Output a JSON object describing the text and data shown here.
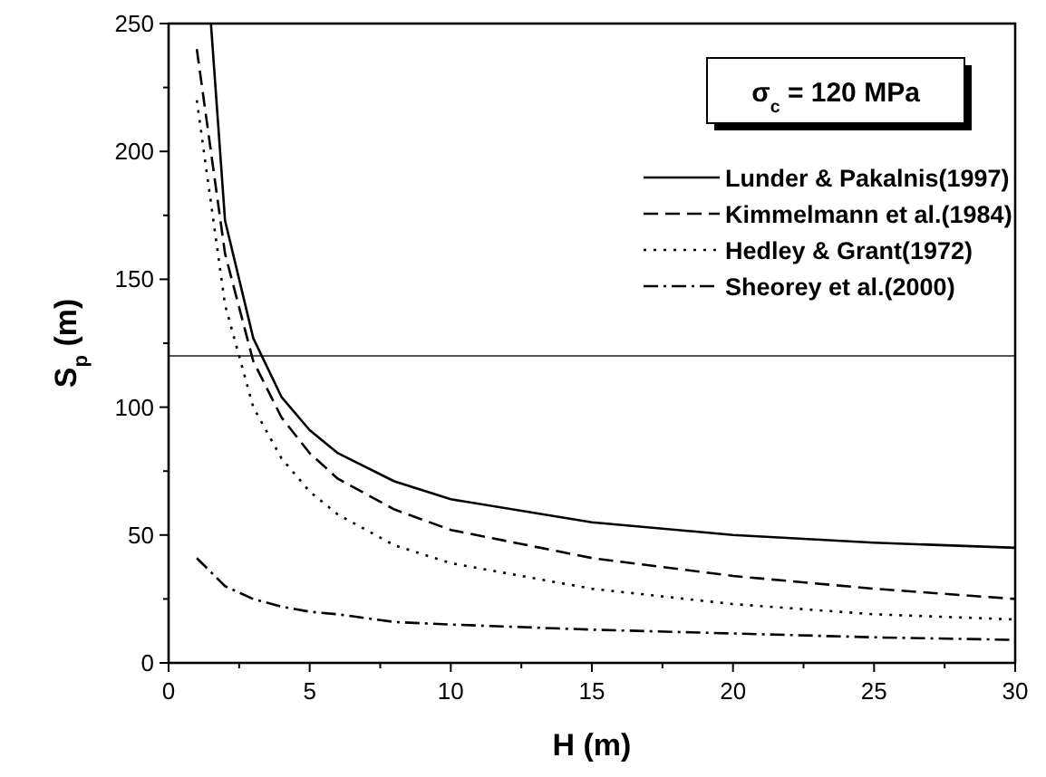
{
  "chart_data": {
    "type": "line",
    "xlabel": "H (m)",
    "ylabel": "S$_{p}$ (m)",
    "xlim": [
      0,
      30
    ],
    "ylim": [
      0,
      250
    ],
    "xticks": [
      0,
      {
        "value": 2.5,
        "label": null
      },
      5,
      {
        "value": 7.5,
        "label": null
      },
      10,
      {
        "value": 12.5,
        "label": null
      },
      15,
      {
        "value": 17.5,
        "label": null
      },
      20,
      {
        "value": 22.5,
        "label": null
      },
      25,
      {
        "value": 27.5,
        "label": null
      },
      30
    ],
    "yticks": [
      0,
      {
        "value": 25,
        "label": null
      },
      50,
      {
        "value": 75,
        "label": null
      },
      100,
      {
        "value": 125,
        "label": null
      },
      150,
      {
        "value": 175,
        "label": null
      },
      200,
      {
        "value": 225,
        "label": null
      },
      250
    ],
    "series": [
      {
        "name": "Lunder & Pakalnis(1997)",
        "color": "#000000",
        "line_style": "solid",
        "x": [
          1.5,
          2,
          3,
          4,
          5,
          6,
          8,
          10,
          15,
          20,
          25,
          30
        ],
        "values": [
          250,
          173,
          127,
          104,
          91,
          82,
          71,
          64,
          55,
          50,
          47,
          45
        ]
      },
      {
        "name": "Kimmelmann et al.(1984)",
        "color": "#000000",
        "line_style": "dashed",
        "x": [
          1,
          2,
          3,
          4,
          5,
          6,
          8,
          10,
          15,
          20,
          25,
          30
        ],
        "values": [
          240,
          160,
          118,
          96,
          82,
          72,
          60,
          52,
          41,
          34,
          29,
          25
        ]
      },
      {
        "name": "Hedley & Grant(1972)",
        "color": "#000000",
        "line_style": "dotted",
        "x": [
          1,
          2,
          3,
          4,
          5,
          6,
          8,
          10,
          15,
          20,
          25,
          30
        ],
        "values": [
          220,
          140,
          100,
          80,
          67,
          58,
          46,
          39,
          29,
          23,
          19,
          17
        ]
      },
      {
        "name": "Sheorey et al.(2000)",
        "color": "#000000",
        "line_style": "dashdot",
        "x": [
          1,
          2,
          3,
          4,
          5,
          6,
          8,
          10,
          15,
          20,
          25,
          30
        ],
        "values": [
          41,
          30,
          25,
          22,
          20,
          19,
          16,
          15,
          13,
          11.5,
          10,
          9
        ]
      }
    ],
    "ref_lines": [
      {
        "axis": "y",
        "value": 120,
        "color": "#555555"
      }
    ],
    "annotations": [
      "σ$_{c}$ = 120 MPa"
    ],
    "legend": "top right",
    "grid": false,
    "marker": "none"
  }
}
